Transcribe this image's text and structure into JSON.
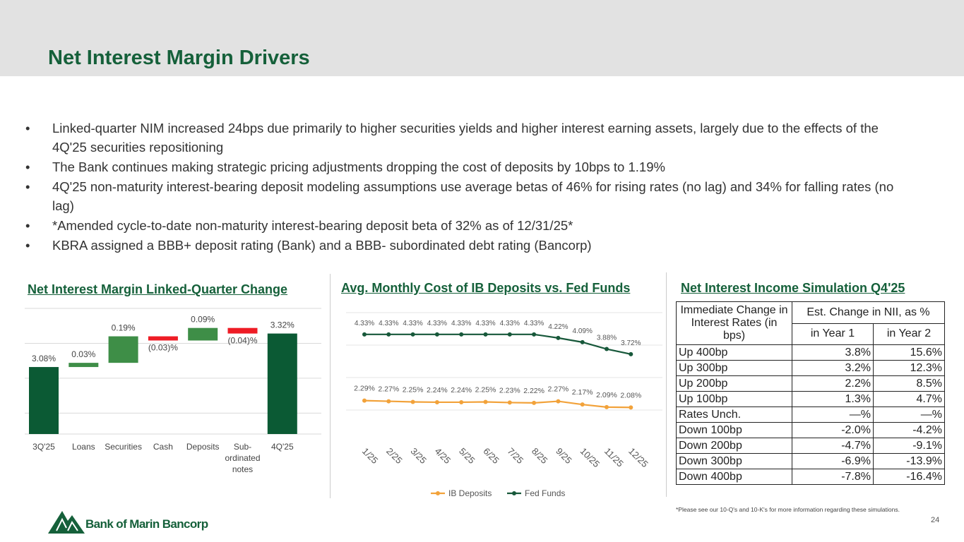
{
  "header": {
    "title": "Net Interest Margin Drivers"
  },
  "bullets": [
    "Linked-quarter NIM increased 24bps due primarily to higher securities yields and higher interest earning assets, largely due to the effects of the 4Q'25 securities repositioning",
    "The Bank continues making strategic pricing adjustments dropping the cost of deposits by 10bps to 1.19%",
    "4Q'25 non-maturity interest-bearing deposit modeling assumptions use average betas of 46% for rising rates (no lag) and 34% for falling rates (no lag)",
    "*Amended cycle-to-date non-maturity interest-bearing deposit beta of 32% as of 12/31/25*",
    "KBRA assigned a BBB+ deposit rating (Bank) and a BBB- subordinated debt rating (Bancorp)"
  ],
  "chart_data": [
    {
      "type": "waterfall",
      "title": "Net Interest Margin Linked-Quarter Change",
      "categories": [
        "3Q'25",
        "Loans",
        "Securities",
        "Cash",
        "Deposits",
        "Sub-ordinated notes",
        "4Q'25"
      ],
      "values": [
        3.08,
        0.03,
        0.19,
        -0.03,
        0.09,
        -0.04,
        3.32
      ],
      "value_labels": [
        "3.08%",
        "0.03%",
        "0.19%",
        "(0.03)%",
        "0.09%",
        "(0.04)%",
        "3.32%"
      ],
      "measure": [
        "absolute",
        "relative",
        "relative",
        "relative",
        "relative",
        "relative",
        "total"
      ],
      "increase_color": "#3e8e47",
      "decrease_color": "#ee1c25",
      "total_color": "#0b5a34",
      "ylim": [
        2.6,
        3.5
      ],
      "yticks": [
        2.75,
        3.0,
        3.25,
        3.5
      ],
      "grid": true
    },
    {
      "type": "line",
      "title": "Avg. Monthly Cost of IB Deposits vs. Fed Funds",
      "categories": [
        "1/25",
        "2/25",
        "3/25",
        "4/25",
        "5/25",
        "6/25",
        "7/25",
        "8/25",
        "9/25",
        "10/25",
        "11/25",
        "12/25"
      ],
      "series": [
        {
          "name": "IB Deposits",
          "color": "#f2a23a",
          "values": [
            2.29,
            2.27,
            2.25,
            2.24,
            2.24,
            2.25,
            2.23,
            2.22,
            2.27,
            2.17,
            2.09,
            2.08
          ],
          "value_labels": [
            "2.29%",
            "2.27%",
            "2.25%",
            "2.24%",
            "2.24%",
            "2.25%",
            "2.23%",
            "2.22%",
            "2.27%",
            "2.17%",
            "2.09%",
            "2.08%"
          ]
        },
        {
          "name": "Fed Funds",
          "color": "#17583a",
          "values": [
            4.33,
            4.33,
            4.33,
            4.33,
            4.33,
            4.33,
            4.33,
            4.33,
            4.22,
            4.09,
            3.88,
            3.72
          ],
          "value_labels": [
            "4.33%",
            "4.33%",
            "4.33%",
            "4.33%",
            "4.33%",
            "4.33%",
            "4.33%",
            "4.33%",
            "4.22%",
            "4.09%",
            "3.88%",
            "3.72%"
          ]
        }
      ],
      "ylim": [
        1.5,
        5
      ],
      "yticks": [
        2,
        3,
        4,
        5
      ],
      "grid": true,
      "legend": "bottom"
    }
  ],
  "table": {
    "title": "Net Interest Income Simulation Q4'25",
    "head": [
      "Immediate Change in Interest Rates (in bps)",
      "Est. Change in NII, as %",
      "in Year 1",
      "in Year 2"
    ],
    "rows": [
      [
        "Up 400bp",
        "3.8%",
        "15.6%"
      ],
      [
        "Up 300bp",
        "3.2%",
        "12.3%"
      ],
      [
        "Up 200bp",
        "2.2%",
        "8.5%"
      ],
      [
        "Up 100bp",
        "1.3%",
        "4.7%"
      ],
      [
        "Rates Unch.",
        "—%",
        "—%"
      ],
      [
        "Down 100bp",
        "-2.0%",
        "-4.2%"
      ],
      [
        "Down 200bp",
        "-4.7%",
        "-9.1%"
      ],
      [
        "Down 300bp",
        "-6.9%",
        "-13.9%"
      ],
      [
        "Down 400bp",
        "-7.8%",
        "-16.4%"
      ]
    ],
    "footnote": "*Please see our 10-Q's and 10-K's for more information regarding these simulations."
  },
  "footer": {
    "logo": "Bank of Marin Bancorp",
    "page": "24"
  }
}
